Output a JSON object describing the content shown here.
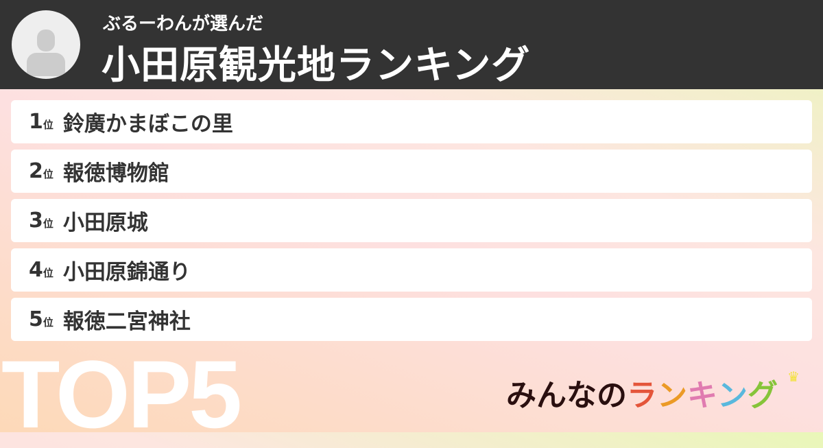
{
  "header": {
    "subtitle": "ぶるーわんが選んだ",
    "title": "小田原観光地ランキング"
  },
  "ranking": [
    {
      "rank": "1",
      "suffix": "位",
      "name": "鈴廣かまぼこの里"
    },
    {
      "rank": "2",
      "suffix": "位",
      "name": "報徳博物館"
    },
    {
      "rank": "3",
      "suffix": "位",
      "name": "小田原城"
    },
    {
      "rank": "4",
      "suffix": "位",
      "name": "小田原錦通り"
    },
    {
      "rank": "5",
      "suffix": "位",
      "name": "報徳二宮神社"
    }
  ],
  "badge": "TOP5",
  "logo": {
    "text": "みんなのランキング",
    "colors": [
      "#2a0f0f",
      "#e4553a",
      "#eb9a26",
      "#e07bb0",
      "#59b8dd",
      "#86c43a"
    ]
  }
}
